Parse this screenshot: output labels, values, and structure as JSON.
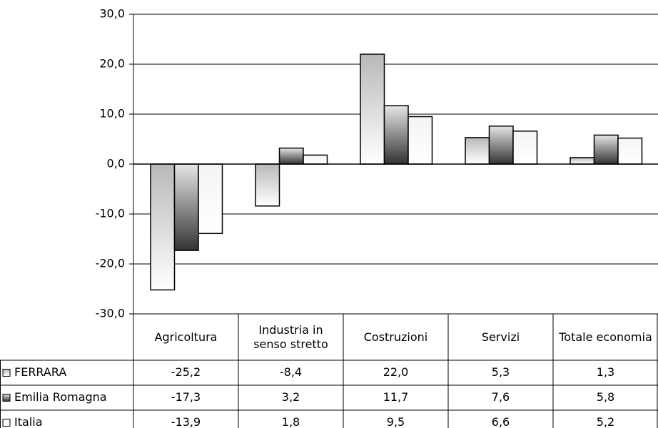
{
  "chart_data": {
    "type": "bar",
    "categories": [
      "Agricoltura",
      "Industria in senso stretto",
      "Costruzioni",
      "Servizi",
      "Totale economia"
    ],
    "series": [
      {
        "name": "FERRARA",
        "color": "#b8b8b8",
        "values": [
          -25.2,
          -8.4,
          22.0,
          5.3,
          1.3
        ],
        "value_labels": [
          "-25,2",
          "-8,4",
          "22,0",
          "5,3",
          "1,3"
        ]
      },
      {
        "name": "Emilia Romagna",
        "color": "#333333",
        "values": [
          -17.3,
          3.2,
          11.7,
          7.6,
          5.8
        ],
        "value_labels": [
          "-17,3",
          "3,2",
          "11,7",
          "7,6",
          "5,8"
        ]
      },
      {
        "name": "Italia",
        "color": "#f4f4f4",
        "values": [
          -13.9,
          1.8,
          9.5,
          6.6,
          5.2
        ],
        "value_labels": [
          "-13,9",
          "1,8",
          "9,5",
          "6,6",
          "5,2"
        ]
      }
    ],
    "ylim": [
      -30,
      30
    ],
    "yticks": [
      {
        "value": -30,
        "label": "-30,0"
      },
      {
        "value": -20,
        "label": "-20,0"
      },
      {
        "value": -10,
        "label": "-10,0"
      },
      {
        "value": 0,
        "label": "0,0"
      },
      {
        "value": 10,
        "label": "10,0"
      },
      {
        "value": 20,
        "label": "20,0"
      },
      {
        "value": 30,
        "label": "30,0"
      }
    ],
    "grid": true
  }
}
